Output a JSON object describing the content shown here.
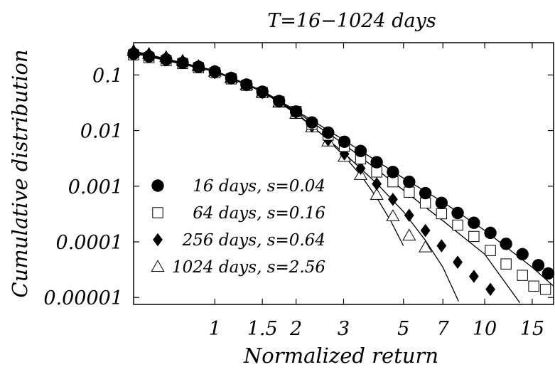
{
  "chart_data": {
    "type": "scatter",
    "title": "T=16−1024 days",
    "xlabel": "Normalized return",
    "ylabel": "Cumulative distribution",
    "x_scale": "log",
    "y_scale": "log",
    "xlim": [
      0.5,
      18
    ],
    "ylim": [
      7.5e-06,
      0.38
    ],
    "x_ticks": [
      1,
      1.5,
      2,
      3,
      5,
      7,
      10,
      15
    ],
    "x_tick_labels": [
      "1",
      "1.5",
      "2",
      "3",
      "5",
      "7",
      "10",
      "15"
    ],
    "y_ticks": [
      0.1,
      0.01,
      0.001,
      0.0001,
      1e-05
    ],
    "y_tick_labels": [
      "0.1",
      "0.01",
      "0.001",
      "0.0001",
      "0.00001"
    ],
    "grid": false,
    "legend_position": "bottom-left",
    "series": [
      {
        "name": "16 days, s=0.04",
        "marker": "filled-circle",
        "color": "#000000",
        "points": [
          [
            0.5,
            0.24
          ],
          [
            0.57,
            0.215
          ],
          [
            0.66,
            0.19
          ],
          [
            0.76,
            0.165
          ],
          [
            0.87,
            0.14
          ],
          [
            1.0,
            0.115
          ],
          [
            1.15,
            0.088
          ],
          [
            1.31,
            0.067
          ],
          [
            1.5,
            0.05
          ],
          [
            1.73,
            0.034
          ],
          [
            2.0,
            0.022
          ],
          [
            2.29,
            0.014
          ],
          [
            2.63,
            0.0092
          ],
          [
            3.02,
            0.0063
          ],
          [
            3.47,
            0.0043
          ],
          [
            3.98,
            0.0027
          ],
          [
            4.57,
            0.0018
          ],
          [
            5.25,
            0.0012
          ],
          [
            6.03,
            0.00075
          ],
          [
            6.92,
            0.0005
          ],
          [
            7.94,
            0.00033
          ],
          [
            9.12,
            0.00022
          ],
          [
            10.5,
            0.000145
          ],
          [
            12.0,
            9.2e-05
          ],
          [
            13.8,
            6e-05
          ],
          [
            15.8,
            3.8e-05
          ],
          [
            17.2,
            2.7e-05
          ]
        ],
        "fit": [
          [
            0.5,
            0.25
          ],
          [
            1.0,
            0.12
          ],
          [
            1.5,
            0.052
          ],
          [
            2.0,
            0.023
          ],
          [
            3.0,
            0.0068
          ],
          [
            5.0,
            0.0014
          ],
          [
            7.0,
            0.00052
          ],
          [
            10.0,
            0.00016
          ],
          [
            15.0,
            3.5e-05
          ],
          [
            18.0,
            1.6e-05
          ]
        ]
      },
      {
        "name": "64 days, s=0.16",
        "marker": "open-square",
        "color": "#000000",
        "points": [
          [
            0.5,
            0.23
          ],
          [
            0.57,
            0.205
          ],
          [
            0.66,
            0.18
          ],
          [
            0.76,
            0.16
          ],
          [
            0.87,
            0.135
          ],
          [
            1.0,
            0.11
          ],
          [
            1.15,
            0.085
          ],
          [
            1.31,
            0.065
          ],
          [
            1.5,
            0.048
          ],
          [
            1.73,
            0.033
          ],
          [
            2.0,
            0.022
          ],
          [
            2.29,
            0.013
          ],
          [
            2.63,
            0.0083
          ],
          [
            3.02,
            0.0052
          ],
          [
            3.47,
            0.0031
          ],
          [
            3.98,
            0.0018
          ],
          [
            4.57,
            0.0012
          ],
          [
            5.25,
            0.00078
          ],
          [
            6.03,
            0.0005
          ],
          [
            6.92,
            0.00032
          ],
          [
            7.94,
            0.0002
          ],
          [
            9.12,
            0.000125
          ],
          [
            10.5,
            7e-05
          ],
          [
            12.0,
            4e-05
          ],
          [
            13.8,
            2.5e-05
          ],
          [
            15.2,
            1.6e-05
          ],
          [
            16.8,
            1.4e-05
          ]
        ],
        "fit": [
          [
            0.5,
            0.245
          ],
          [
            1.0,
            0.115
          ],
          [
            1.5,
            0.05
          ],
          [
            2.0,
            0.022
          ],
          [
            3.0,
            0.0058
          ],
          [
            5.0,
            0.00085
          ],
          [
            7.0,
            0.00024
          ],
          [
            10.0,
            6e-05
          ],
          [
            13.5,
            8e-06
          ]
        ]
      },
      {
        "name": "256 days, s=0.64",
        "marker": "filled-diamond",
        "color": "#000000",
        "points": [
          [
            0.5,
            0.26
          ],
          [
            0.57,
            0.23
          ],
          [
            0.66,
            0.2
          ],
          [
            0.76,
            0.17
          ],
          [
            0.87,
            0.14
          ],
          [
            1.0,
            0.11
          ],
          [
            1.15,
            0.087
          ],
          [
            1.31,
            0.066
          ],
          [
            1.5,
            0.048
          ],
          [
            1.73,
            0.033
          ],
          [
            2.0,
            0.021
          ],
          [
            2.29,
            0.012
          ],
          [
            2.63,
            0.0068
          ],
          [
            3.02,
            0.0038
          ],
          [
            3.47,
            0.0021
          ],
          [
            3.98,
            0.0011
          ],
          [
            4.57,
            0.00058
          ],
          [
            5.25,
            0.0003
          ],
          [
            6.03,
            0.00016
          ],
          [
            6.92,
            8.5e-05
          ],
          [
            7.94,
            4.3e-05
          ],
          [
            9.12,
            2.4e-05
          ],
          [
            10.5,
            1.4e-05
          ]
        ],
        "fit": [
          [
            0.5,
            0.26
          ],
          [
            1.0,
            0.12
          ],
          [
            1.5,
            0.05
          ],
          [
            2.0,
            0.021
          ],
          [
            3.0,
            0.004
          ],
          [
            4.0,
            0.0011
          ],
          [
            5.0,
            0.00035
          ],
          [
            6.0,
            0.00011
          ],
          [
            7.0,
            3.5e-05
          ],
          [
            8.0,
            8.5e-06
          ]
        ]
      },
      {
        "name": "1024 days, s=2.56",
        "marker": "open-triangle",
        "color": "#000000",
        "points": [
          [
            0.5,
            0.27
          ],
          [
            0.57,
            0.24
          ],
          [
            0.66,
            0.21
          ],
          [
            0.76,
            0.18
          ],
          [
            0.87,
            0.145
          ],
          [
            1.0,
            0.115
          ],
          [
            1.15,
            0.088
          ],
          [
            1.31,
            0.066
          ],
          [
            1.5,
            0.048
          ],
          [
            1.73,
            0.032
          ],
          [
            2.0,
            0.02
          ],
          [
            2.29,
            0.0115
          ],
          [
            2.63,
            0.0064
          ],
          [
            3.02,
            0.0034
          ],
          [
            3.47,
            0.0016
          ],
          [
            3.98,
            0.0007
          ],
          [
            4.57,
            0.00029
          ],
          [
            5.25,
            0.00013
          ],
          [
            6.03,
            8e-05
          ]
        ],
        "fit": [
          [
            0.5,
            0.27
          ],
          [
            1.0,
            0.12
          ],
          [
            1.5,
            0.05
          ],
          [
            2.0,
            0.02
          ],
          [
            2.5,
            0.0085
          ],
          [
            3.0,
            0.0036
          ],
          [
            3.5,
            0.0015
          ],
          [
            4.0,
            0.0006
          ],
          [
            4.5,
            0.00023
          ],
          [
            5.0,
            8.5e-05
          ]
        ]
      }
    ]
  }
}
